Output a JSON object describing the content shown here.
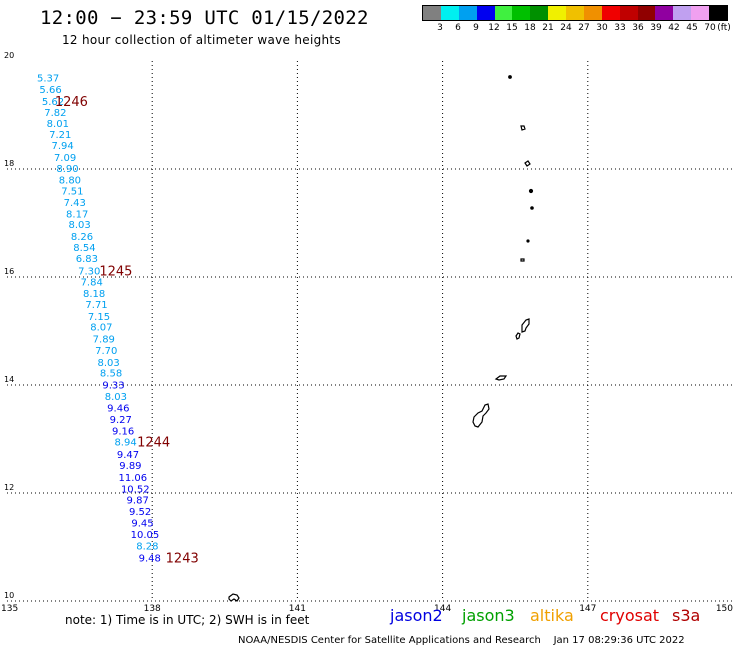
{
  "header": {
    "title": "12:00 − 23:59 UTC 01/15/2022",
    "subtitle": "12 hour collection of altimeter wave heights"
  },
  "color_scale": {
    "unit": "(ft)",
    "colors": [
      "#808080",
      "#00f0f0",
      "#00a0f0",
      "#0000f0",
      "#40f040",
      "#00c000",
      "#009000",
      "#f0f000",
      "#f0c000",
      "#f09000",
      "#f00000",
      "#c00000",
      "#900000",
      "#9000a0",
      "#c0a0f0",
      "#f0a0f0",
      "#000000"
    ],
    "labels": [
      "3",
      "6",
      "9",
      "12",
      "15",
      "18",
      "21",
      "24",
      "27",
      "30",
      "33",
      "36",
      "39",
      "42",
      "45",
      "70"
    ]
  },
  "axes": {
    "lat_labels": [
      "20",
      "18",
      "16",
      "14",
      "12",
      "10"
    ],
    "lon_labels": [
      "135",
      "138",
      "141",
      "144",
      "147",
      "150"
    ]
  },
  "track": {
    "points": [
      {
        "lat": 19.69,
        "lon": 135.85,
        "value": "5.37",
        "color": "#00a0f0"
      },
      {
        "lat": 19.48,
        "lon": 135.9,
        "value": "5.66",
        "color": "#00a0f0"
      },
      {
        "lat": 19.26,
        "lon": 135.95,
        "value": "5.62",
        "color": "#00a0f0"
      },
      {
        "lat": 19.06,
        "lon": 136.0,
        "value": "7.82",
        "color": "#00a0f0"
      },
      {
        "lat": 18.85,
        "lon": 136.05,
        "value": "8.01",
        "color": "#00a0f0"
      },
      {
        "lat": 18.65,
        "lon": 136.1,
        "value": "7.21",
        "color": "#00a0f0"
      },
      {
        "lat": 18.44,
        "lon": 136.15,
        "value": "7.94",
        "color": "#00a0f0"
      },
      {
        "lat": 18.22,
        "lon": 136.2,
        "value": "7.09",
        "color": "#00a0f0"
      },
      {
        "lat": 18.02,
        "lon": 136.25,
        "value": "8.90",
        "color": "#00a0f0"
      },
      {
        "lat": 17.81,
        "lon": 136.3,
        "value": "8.80",
        "color": "#00a0f0"
      },
      {
        "lat": 17.6,
        "lon": 136.35,
        "value": "7.51",
        "color": "#00a0f0"
      },
      {
        "lat": 17.39,
        "lon": 136.4,
        "value": "7.43",
        "color": "#00a0f0"
      },
      {
        "lat": 17.18,
        "lon": 136.45,
        "value": "8.17",
        "color": "#00a0f0"
      },
      {
        "lat": 16.98,
        "lon": 136.5,
        "value": "8.03",
        "color": "#00a0f0"
      },
      {
        "lat": 16.76,
        "lon": 136.55,
        "value": "8.26",
        "color": "#00a0f0"
      },
      {
        "lat": 16.56,
        "lon": 136.6,
        "value": "8.54",
        "color": "#00a0f0"
      },
      {
        "lat": 16.35,
        "lon": 136.65,
        "value": "6.83",
        "color": "#00a0f0"
      },
      {
        "lat": 16.12,
        "lon": 136.7,
        "value": "7.30",
        "color": "#00a0f0"
      },
      {
        "lat": 15.92,
        "lon": 136.75,
        "value": "7.84",
        "color": "#00a0f0"
      },
      {
        "lat": 15.7,
        "lon": 136.8,
        "value": "8.18",
        "color": "#00a0f0"
      },
      {
        "lat": 15.5,
        "lon": 136.85,
        "value": "7.71",
        "color": "#00a0f0"
      },
      {
        "lat": 15.28,
        "lon": 136.9,
        "value": "7.15",
        "color": "#00a0f0"
      },
      {
        "lat": 15.08,
        "lon": 136.95,
        "value": "8.07",
        "color": "#00a0f0"
      },
      {
        "lat": 14.86,
        "lon": 137.0,
        "value": "7.89",
        "color": "#00a0f0"
      },
      {
        "lat": 14.65,
        "lon": 137.05,
        "value": "7.70",
        "color": "#00a0f0"
      },
      {
        "lat": 14.43,
        "lon": 137.1,
        "value": "8.03",
        "color": "#00a0f0"
      },
      {
        "lat": 14.23,
        "lon": 137.15,
        "value": "8.58",
        "color": "#00a0f0"
      },
      {
        "lat": 14.01,
        "lon": 137.2,
        "value": "9.33",
        "color": "#0000f0"
      },
      {
        "lat": 13.8,
        "lon": 137.25,
        "value": "8.03",
        "color": "#00a0f0"
      },
      {
        "lat": 13.58,
        "lon": 137.3,
        "value": "9.46",
        "color": "#0000f0"
      },
      {
        "lat": 13.37,
        "lon": 137.35,
        "value": "9.27",
        "color": "#0000f0"
      },
      {
        "lat": 13.16,
        "lon": 137.4,
        "value": "9.16",
        "color": "#0000f0"
      },
      {
        "lat": 12.95,
        "lon": 137.45,
        "value": "8.94",
        "color": "#00a0f0"
      },
      {
        "lat": 12.72,
        "lon": 137.5,
        "value": "9.47",
        "color": "#0000f0"
      },
      {
        "lat": 12.52,
        "lon": 137.55,
        "value": "9.89",
        "color": "#0000f0"
      },
      {
        "lat": 12.3,
        "lon": 137.6,
        "value": "11.06",
        "color": "#0000f0"
      },
      {
        "lat": 12.08,
        "lon": 137.65,
        "value": "10.52",
        "color": "#0000f0"
      },
      {
        "lat": 11.88,
        "lon": 137.7,
        "value": "9.87",
        "color": "#0000f0"
      },
      {
        "lat": 11.67,
        "lon": 137.75,
        "value": "9.52",
        "color": "#0000f0"
      },
      {
        "lat": 11.45,
        "lon": 137.8,
        "value": "9.45",
        "color": "#0000f0"
      },
      {
        "lat": 11.24,
        "lon": 137.85,
        "value": "10.05",
        "color": "#0000f0"
      },
      {
        "lat": 11.03,
        "lon": 137.9,
        "value": "8.28",
        "color": "#00a0f0"
      },
      {
        "lat": 10.81,
        "lon": 137.95,
        "value": "9.48",
        "color": "#0000f0"
      }
    ],
    "time_markers": [
      {
        "lat": 19.26,
        "lon": 136.33,
        "text": "1246"
      },
      {
        "lat": 16.12,
        "lon": 137.25,
        "text": "1245"
      },
      {
        "lat": 12.95,
        "lon": 138.03,
        "text": "1244"
      },
      {
        "lat": 10.81,
        "lon": 138.62,
        "text": "1243"
      }
    ],
    "marker_color": "#800000"
  },
  "footer": {
    "note": "note:  1) Time is in UTC;  2) SWH is in feet",
    "satellites": [
      {
        "name": "jason2",
        "color": "#0000e0"
      },
      {
        "name": "jason3",
        "color": "#00a000"
      },
      {
        "name": "altika",
        "color": "#f0a000"
      },
      {
        "name": "cryosat",
        "color": "#e00000"
      },
      {
        "name": "s3a",
        "color": "#b00000"
      }
    ],
    "credit": "NOAA/NESDIS Center for Satellite Applications and Research",
    "timestamp": "Jan 17 08:29:36 UTC 2022"
  }
}
